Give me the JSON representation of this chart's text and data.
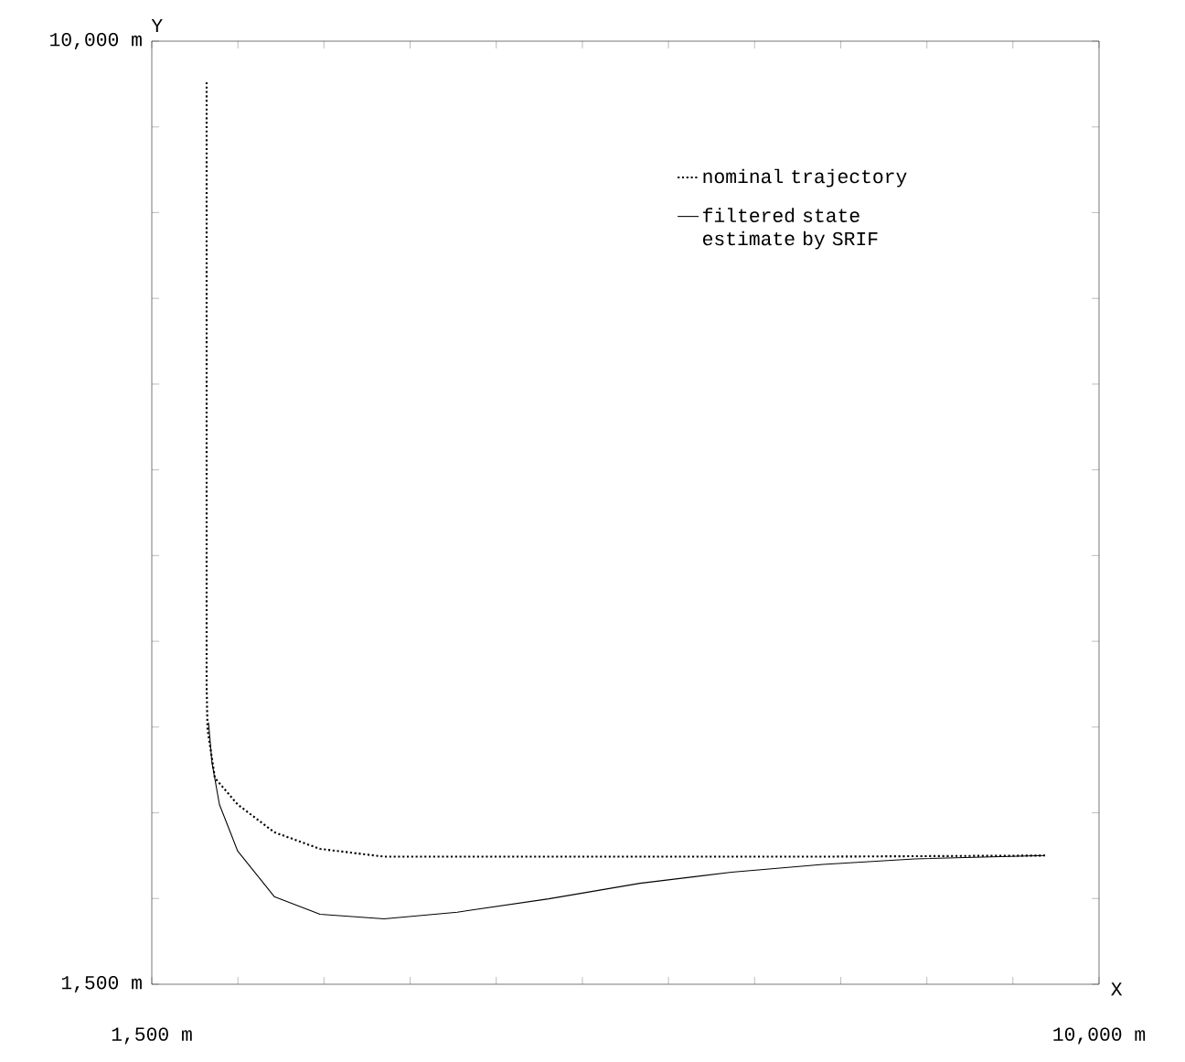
{
  "chart_data": {
    "type": "line",
    "xlabel": "X",
    "ylabel": "Y",
    "xlim": [
      1500,
      10000
    ],
    "ylim": [
      1500,
      10000
    ],
    "xticks": [
      {
        "value": 1500,
        "label": "1,500 m"
      },
      {
        "value": 2273,
        "label": null
      },
      {
        "value": 3045,
        "label": null
      },
      {
        "value": 3818,
        "label": null
      },
      {
        "value": 4591,
        "label": null
      },
      {
        "value": 5364,
        "label": null
      },
      {
        "value": 6136,
        "label": null
      },
      {
        "value": 6909,
        "label": null
      },
      {
        "value": 7682,
        "label": null
      },
      {
        "value": 8455,
        "label": null
      },
      {
        "value": 9227,
        "label": null
      },
      {
        "value": 10000,
        "label": "10,000 m"
      }
    ],
    "yticks": [
      {
        "value": 1500,
        "label": "1,500 m"
      },
      {
        "value": 2273,
        "label": null
      },
      {
        "value": 3045,
        "label": null
      },
      {
        "value": 3818,
        "label": null
      },
      {
        "value": 4591,
        "label": null
      },
      {
        "value": 5364,
        "label": null
      },
      {
        "value": 6136,
        "label": null
      },
      {
        "value": 6909,
        "label": null
      },
      {
        "value": 7682,
        "label": null
      },
      {
        "value": 8455,
        "label": null
      },
      {
        "value": 9227,
        "label": null
      },
      {
        "value": 10000,
        "label": "10,000 m"
      }
    ],
    "legend": "top right",
    "series": [
      {
        "name": "nominal trajectory",
        "color": "#000000",
        "line_style": "dotted",
        "x": [
          1992,
          1992,
          1992,
          1992,
          2000,
          2066,
          2271,
          2599,
          3010,
          3584,
          5061,
          7522,
          9516
        ],
        "values": [
          9630,
          8000,
          6000,
          4200,
          3800,
          3360,
          3120,
          2870,
          2720,
          2650,
          2650,
          2650,
          2660
        ]
      },
      {
        "name": "filtered state estimate by SRIF",
        "color": "#000000",
        "line_style": "solid",
        "x": [
          2009,
          2040,
          2107,
          2271,
          2599,
          3010,
          3584,
          4241,
          5061,
          5881,
          6702,
          7522,
          8343,
          9516
        ],
        "values": [
          3860,
          3500,
          3120,
          2700,
          2290,
          2130,
          2090,
          2150,
          2270,
          2410,
          2510,
          2580,
          2630,
          2660
        ]
      }
    ]
  }
}
